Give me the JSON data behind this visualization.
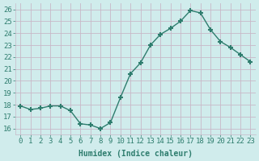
{
  "x": [
    0,
    1,
    2,
    3,
    4,
    5,
    6,
    7,
    8,
    9,
    10,
    11,
    12,
    13,
    14,
    15,
    16,
    17,
    18,
    19,
    20,
    21,
    22,
    23
  ],
  "y": [
    17.9,
    17.6,
    17.7,
    17.9,
    17.9,
    17.5,
    16.4,
    16.3,
    16.0,
    16.5,
    18.6,
    20.6,
    21.5,
    23.0,
    23.9,
    24.4,
    25.0,
    25.9,
    25.7,
    24.3,
    23.3,
    22.8,
    22.2,
    21.6
  ],
  "line_color": "#2e7d6e",
  "marker": "+",
  "marker_size": 5,
  "marker_lw": 1.5,
  "line_width": 1.0,
  "bg_color": "#d0ecec",
  "grid_color": "#c8b8c8",
  "xlabel": "Humidex (Indice chaleur)",
  "ylabel_ticks": [
    16,
    17,
    18,
    19,
    20,
    21,
    22,
    23,
    24,
    25,
    26
  ],
  "xlim": [
    -0.5,
    23.5
  ],
  "ylim": [
    15.5,
    26.5
  ],
  "xtick_labels": [
    "0",
    "1",
    "2",
    "3",
    "4",
    "5",
    "6",
    "7",
    "8",
    "9",
    "10",
    "11",
    "12",
    "13",
    "14",
    "15",
    "16",
    "17",
    "18",
    "19",
    "20",
    "21",
    "22",
    "23"
  ],
  "xlabel_fontsize": 7,
  "tick_fontsize": 6.5,
  "tick_color": "#2e7d6e",
  "label_color": "#2e7d6e"
}
